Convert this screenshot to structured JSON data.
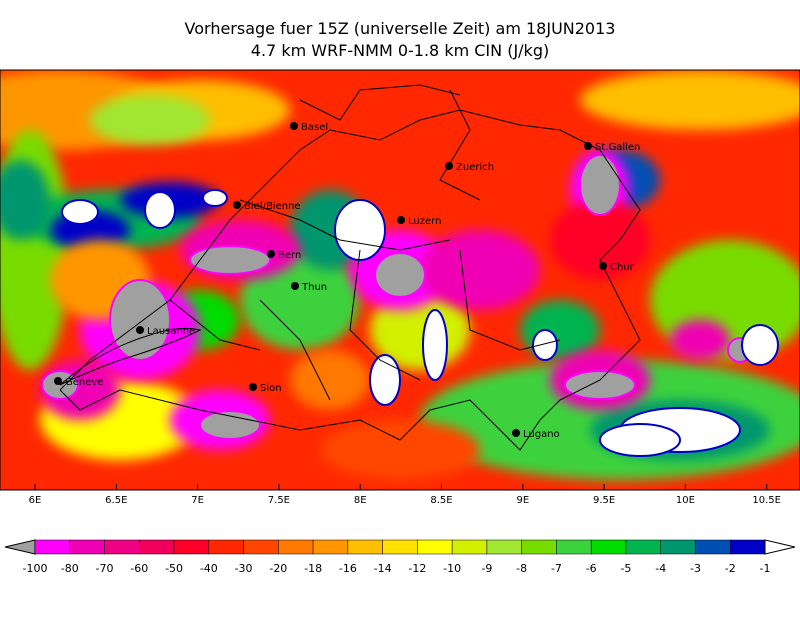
{
  "header": {
    "title": "Vorhersage fuer 15Z (universelle Zeit) am 18JUN2013",
    "subtitle": "4.7 km WRF-NMM 0-1.8 km CIN (J/kg)"
  },
  "map": {
    "cities": [
      "Basel",
      "Zuerich",
      "St.Gallen",
      "Biel/Bienne",
      "Luzern",
      "Bern",
      "Thun",
      "Chur",
      "Lausanne",
      "Geneve",
      "Sion",
      "Lugano"
    ],
    "lon_labels": [
      "6E",
      "6.5E",
      "7E",
      "7.5E",
      "8E",
      "8.5E",
      "9E",
      "9.5E",
      "10E",
      "10.5E"
    ]
  },
  "legend": {
    "below_color": "#a0a0a0",
    "above_color": "#ffffff",
    "colors": [
      "#ff00ff",
      "#f000b4",
      "#f00082",
      "#f0005a",
      "#ff0028",
      "#ff2800",
      "#ff4600",
      "#ff7800",
      "#ff9600",
      "#ffbe00",
      "#ffe100",
      "#ffff00",
      "#d2f000",
      "#a0e632",
      "#78dc00",
      "#3cd23c",
      "#00dc00",
      "#00b450",
      "#00966e",
      "#0050b4",
      "#0000c8"
    ],
    "labels": [
      -100,
      -80,
      -70,
      -60,
      -50,
      -40,
      -30,
      -20,
      -18,
      -16,
      -14,
      -12,
      -10,
      -9,
      -8,
      -7,
      -6,
      -5,
      -4,
      -3,
      -2,
      -1
    ]
  }
}
